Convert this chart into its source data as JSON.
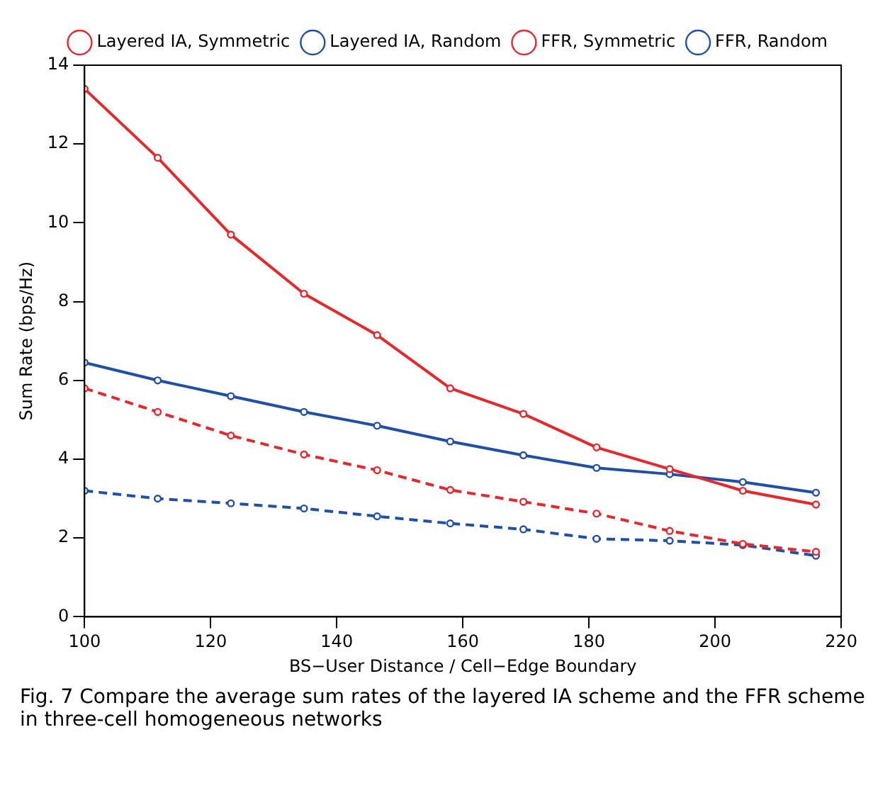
{
  "chart_data": {
    "type": "line",
    "xlabel": "BS−User Distance / Cell−Edge Boundary",
    "ylabel": "Sum Rate (bps/Hz)",
    "x": [
      100,
      111.6,
      123.2,
      134.8,
      146.4,
      158,
      169.6,
      181.2,
      192.8,
      204.4,
      216
    ],
    "series": [
      {
        "name": "Layered IA, Symmetric",
        "color": "#e8262b",
        "line_style": "solid",
        "values": [
          13.4,
          11.65,
          9.7,
          8.2,
          7.15,
          5.8,
          5.15,
          4.3,
          3.75,
          3.2,
          2.85
        ]
      },
      {
        "name": "Layered IA, Random",
        "color": "#1f4fa8",
        "line_style": "solid",
        "values": [
          6.45,
          6.0,
          5.6,
          5.2,
          4.85,
          4.45,
          4.1,
          3.78,
          3.62,
          3.42,
          3.15
        ]
      },
      {
        "name": "FFR, Symmetric",
        "color": "#e8262b",
        "line_style": "dashed",
        "values": [
          5.8,
          5.2,
          4.6,
          4.12,
          3.72,
          3.22,
          2.92,
          2.62,
          2.18,
          1.85,
          1.65
        ]
      },
      {
        "name": "FFR, Random",
        "color": "#1f4fa8",
        "line_style": "dashed",
        "values": [
          3.2,
          3.0,
          2.88,
          2.75,
          2.55,
          2.37,
          2.22,
          1.98,
          1.93,
          1.82,
          1.55
        ]
      }
    ],
    "xlim": [
      100,
      220
    ],
    "xticks": [
      100,
      120,
      140,
      160,
      180,
      200,
      220
    ],
    "ylim": [
      0,
      14
    ],
    "yticks": [
      0,
      2,
      4,
      6,
      8,
      10,
      12,
      14
    ],
    "grid": false,
    "legend": "top right",
    "marker": "circle",
    "annotations": [
      "Fig. 7 Compare the average sum rates of the layered IA scheme and the FFR scheme in three-cell homogeneous networks"
    ]
  }
}
